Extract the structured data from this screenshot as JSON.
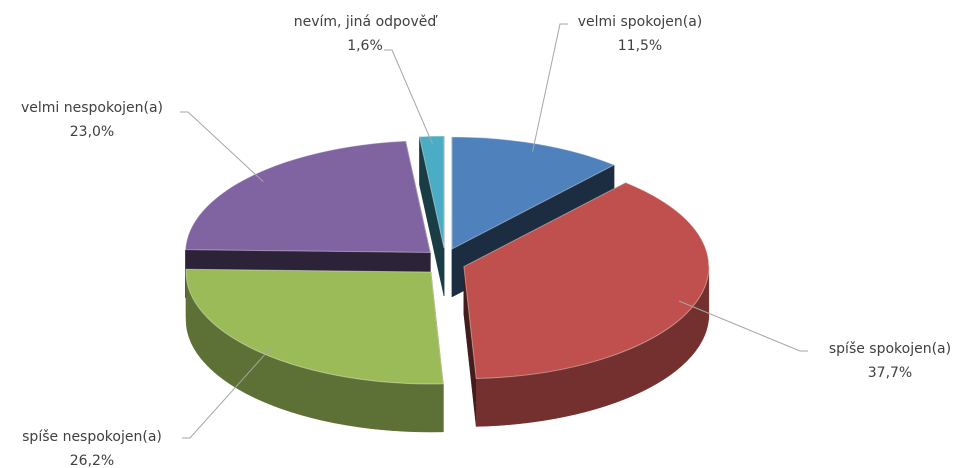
{
  "chart_data": {
    "type": "pie3d",
    "categories": [
      "velmi spokojen(a)",
      "spíše spokojen(a)",
      "spíše nespokojen(a)",
      "velmi nespokojen(a)",
      "nevím, jiná odpověď"
    ],
    "values": [
      11.5,
      37.7,
      26.2,
      23.0,
      1.6
    ],
    "value_labels": [
      "11,5%",
      "37,7%",
      "26,2%",
      "23,0%",
      "1,6%"
    ],
    "colors": [
      "#4f81bd",
      "#c0504d",
      "#9bbb59",
      "#8064a2",
      "#4bacc6"
    ]
  }
}
